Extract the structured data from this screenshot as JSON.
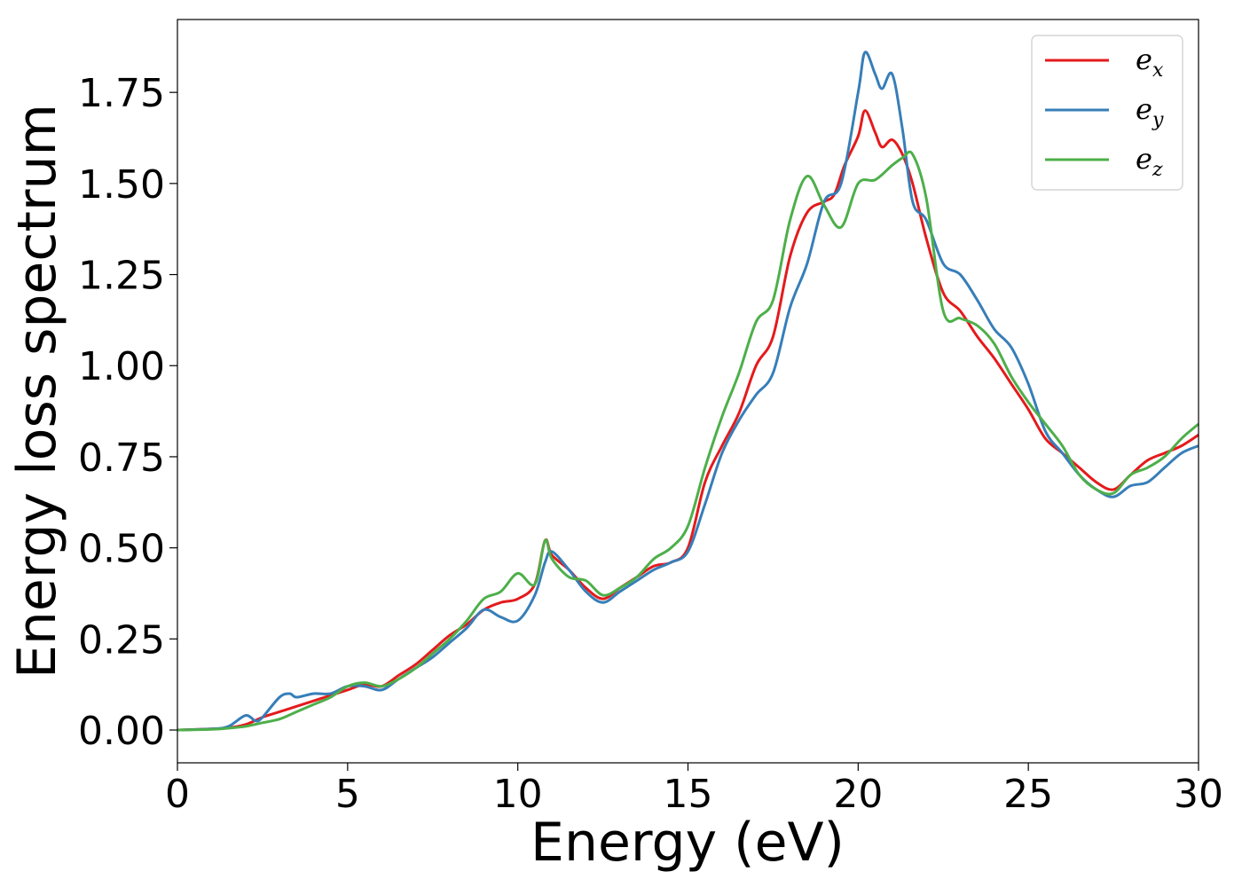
{
  "chart_data": {
    "type": "line",
    "xlabel": "Energy (eV)",
    "ylabel": "Energy loss spectrum",
    "xlim": [
      0,
      30
    ],
    "ylim": [
      -0.09,
      1.95
    ],
    "xticks": [
      "0",
      "5",
      "10",
      "15",
      "20",
      "25",
      "30"
    ],
    "yticks": [
      "0.00",
      "0.25",
      "0.50",
      "0.75",
      "1.00",
      "1.25",
      "1.50",
      "1.75"
    ],
    "grid": false,
    "legend_position": "top-right",
    "series": [
      {
        "name": "e_x",
        "label_main": "e",
        "label_sub": "x",
        "color": "#e41a1c",
        "x": [
          0,
          1,
          1.5,
          2,
          2.5,
          3,
          3.5,
          4,
          4.5,
          5,
          5.5,
          6,
          6.5,
          7,
          7.5,
          8,
          8.5,
          9,
          9.5,
          10,
          10.5,
          10.8,
          11,
          11.5,
          12,
          12.5,
          13,
          13.5,
          14,
          14.5,
          15,
          15.5,
          16,
          16.5,
          17,
          17.5,
          18,
          18.5,
          19,
          19.3,
          19.6,
          20,
          20.2,
          20.5,
          20.7,
          21,
          21.3,
          21.6,
          22,
          22.5,
          23,
          23.5,
          24,
          24.5,
          25,
          25.5,
          26,
          26.5,
          27,
          27.5,
          28,
          28.5,
          29,
          29.5,
          30
        ],
        "y": [
          0,
          0.003,
          0.006,
          0.015,
          0.035,
          0.05,
          0.065,
          0.08,
          0.095,
          0.11,
          0.125,
          0.12,
          0.15,
          0.18,
          0.22,
          0.26,
          0.29,
          0.33,
          0.35,
          0.36,
          0.4,
          0.52,
          0.48,
          0.44,
          0.39,
          0.36,
          0.39,
          0.42,
          0.45,
          0.46,
          0.5,
          0.68,
          0.78,
          0.87,
          1.0,
          1.08,
          1.3,
          1.42,
          1.45,
          1.47,
          1.55,
          1.63,
          1.7,
          1.64,
          1.6,
          1.62,
          1.58,
          1.5,
          1.35,
          1.2,
          1.15,
          1.08,
          1.02,
          0.95,
          0.88,
          0.8,
          0.76,
          0.72,
          0.68,
          0.66,
          0.7,
          0.74,
          0.76,
          0.78,
          0.81
        ]
      },
      {
        "name": "e_y",
        "label_main": "e",
        "label_sub": "y",
        "color": "#377eb8",
        "x": [
          0,
          1,
          1.5,
          2,
          2.3,
          2.5,
          3,
          3.3,
          3.5,
          4,
          4.5,
          5,
          5.5,
          6,
          6.5,
          7,
          7.5,
          8,
          8.5,
          9,
          9.5,
          10,
          10.5,
          10.8,
          11,
          11.5,
          12,
          12.5,
          13,
          13.5,
          14,
          14.5,
          15,
          15.5,
          16,
          16.5,
          17,
          17.5,
          18,
          18.5,
          19,
          19.5,
          20,
          20.2,
          20.5,
          20.7,
          21,
          21.3,
          21.6,
          22,
          22.5,
          23,
          23.5,
          24,
          24.5,
          25,
          25.5,
          26,
          26.5,
          27,
          27.5,
          28,
          28.5,
          29,
          29.5,
          30
        ],
        "y": [
          0,
          0.003,
          0.01,
          0.04,
          0.025,
          0.035,
          0.09,
          0.1,
          0.09,
          0.1,
          0.1,
          0.12,
          0.12,
          0.11,
          0.14,
          0.17,
          0.2,
          0.24,
          0.28,
          0.33,
          0.31,
          0.3,
          0.37,
          0.46,
          0.49,
          0.44,
          0.38,
          0.35,
          0.38,
          0.41,
          0.44,
          0.46,
          0.49,
          0.62,
          0.76,
          0.85,
          0.92,
          0.98,
          1.16,
          1.28,
          1.45,
          1.5,
          1.75,
          1.86,
          1.8,
          1.76,
          1.8,
          1.65,
          1.45,
          1.4,
          1.28,
          1.25,
          1.18,
          1.1,
          1.05,
          0.95,
          0.82,
          0.76,
          0.7,
          0.66,
          0.64,
          0.67,
          0.68,
          0.72,
          0.76,
          0.78
        ]
      },
      {
        "name": "e_z",
        "label_main": "e",
        "label_sub": "z",
        "color": "#4daf4a",
        "x": [
          0,
          1,
          1.5,
          2,
          2.5,
          3,
          3.5,
          4,
          4.5,
          5,
          5.5,
          6,
          6.5,
          7,
          7.5,
          8,
          8.5,
          9,
          9.5,
          10,
          10.5,
          10.8,
          11,
          11.5,
          12,
          12.5,
          13,
          13.5,
          14,
          14.5,
          15,
          15.5,
          16,
          16.5,
          17,
          17.5,
          18,
          18.5,
          19,
          19.5,
          20,
          20.5,
          21,
          21.3,
          21.6,
          22,
          22.5,
          23,
          23.5,
          24,
          24.5,
          25,
          25.5,
          26,
          26.5,
          27,
          27.5,
          28,
          28.5,
          29,
          29.5,
          30
        ],
        "y": [
          0,
          0.002,
          0.005,
          0.01,
          0.02,
          0.03,
          0.05,
          0.07,
          0.09,
          0.12,
          0.13,
          0.12,
          0.14,
          0.17,
          0.21,
          0.25,
          0.3,
          0.36,
          0.38,
          0.43,
          0.4,
          0.52,
          0.47,
          0.42,
          0.41,
          0.37,
          0.39,
          0.42,
          0.47,
          0.5,
          0.56,
          0.72,
          0.86,
          0.98,
          1.12,
          1.18,
          1.4,
          1.52,
          1.44,
          1.38,
          1.5,
          1.51,
          1.55,
          1.57,
          1.58,
          1.46,
          1.15,
          1.13,
          1.11,
          1.06,
          0.97,
          0.9,
          0.84,
          0.78,
          0.7,
          0.66,
          0.65,
          0.7,
          0.72,
          0.75,
          0.8,
          0.84
        ]
      }
    ]
  }
}
